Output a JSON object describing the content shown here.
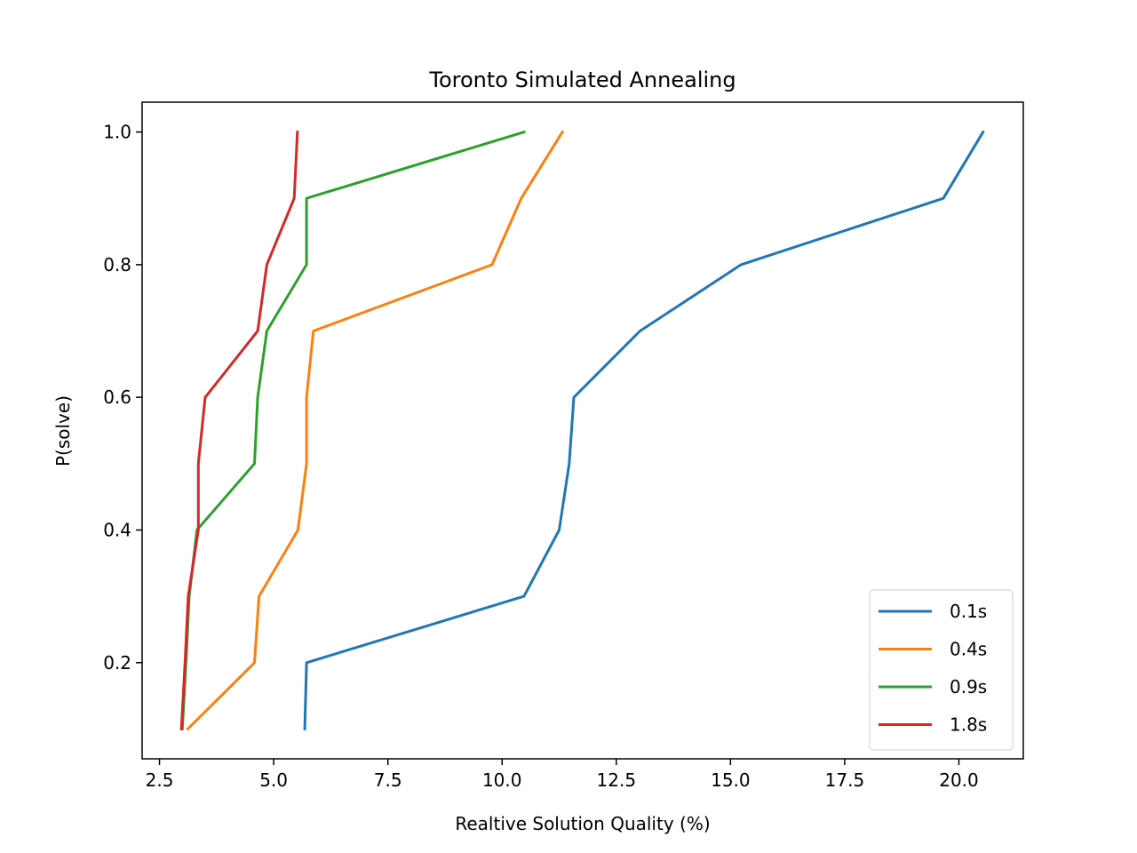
{
  "chart_data": {
    "type": "line",
    "title": "Toronto Simulated Annealing",
    "xlabel": "Realtive Solution Quality (%)",
    "ylabel": "P(solve)",
    "xlim": [
      2.12,
      21.41
    ],
    "ylim": [
      0.055,
      1.045
    ],
    "xticks": [
      2.5,
      5.0,
      7.5,
      10.0,
      12.5,
      15.0,
      17.5,
      20.0
    ],
    "xtick_labels": [
      "2.5",
      "5.0",
      "7.5",
      "10.0",
      "12.5",
      "15.0",
      "17.5",
      "20.0"
    ],
    "yticks": [
      0.2,
      0.4,
      0.6,
      0.8,
      1.0
    ],
    "ytick_labels": [
      "0.2",
      "0.4",
      "0.6",
      "0.8",
      "1.0"
    ],
    "grid": false,
    "legend_position": "lower-right",
    "series": [
      {
        "name": "0.1s",
        "color": "#1f77b4",
        "points": [
          [
            5.68,
            0.1
          ],
          [
            5.72,
            0.2
          ],
          [
            10.48,
            0.3
          ],
          [
            11.25,
            0.4
          ],
          [
            11.47,
            0.5
          ],
          [
            11.57,
            0.6
          ],
          [
            13.02,
            0.7
          ],
          [
            15.23,
            0.8
          ],
          [
            19.66,
            0.9
          ],
          [
            20.53,
            1.0
          ]
        ]
      },
      {
        "name": "0.4s",
        "color": "#ff7f0e",
        "points": [
          [
            3.12,
            0.1
          ],
          [
            4.58,
            0.2
          ],
          [
            4.68,
            0.3
          ],
          [
            5.53,
            0.4
          ],
          [
            5.72,
            0.5
          ],
          [
            5.72,
            0.6
          ],
          [
            5.87,
            0.7
          ],
          [
            9.78,
            0.8
          ],
          [
            10.42,
            0.9
          ],
          [
            11.32,
            1.0
          ]
        ]
      },
      {
        "name": "0.9s",
        "color": "#2ca02c",
        "points": [
          [
            3.0,
            0.1
          ],
          [
            3.08,
            0.2
          ],
          [
            3.15,
            0.3
          ],
          [
            3.32,
            0.4
          ],
          [
            4.58,
            0.5
          ],
          [
            4.65,
            0.6
          ],
          [
            4.85,
            0.7
          ],
          [
            5.72,
            0.8
          ],
          [
            5.72,
            0.9
          ],
          [
            10.48,
            1.0
          ]
        ]
      },
      {
        "name": "1.8s",
        "color": "#d62728",
        "points": [
          [
            2.98,
            0.1
          ],
          [
            3.06,
            0.2
          ],
          [
            3.13,
            0.3
          ],
          [
            3.35,
            0.4
          ],
          [
            3.35,
            0.5
          ],
          [
            3.5,
            0.6
          ],
          [
            4.65,
            0.7
          ],
          [
            4.85,
            0.8
          ],
          [
            5.45,
            0.9
          ],
          [
            5.52,
            1.0
          ]
        ]
      }
    ]
  }
}
